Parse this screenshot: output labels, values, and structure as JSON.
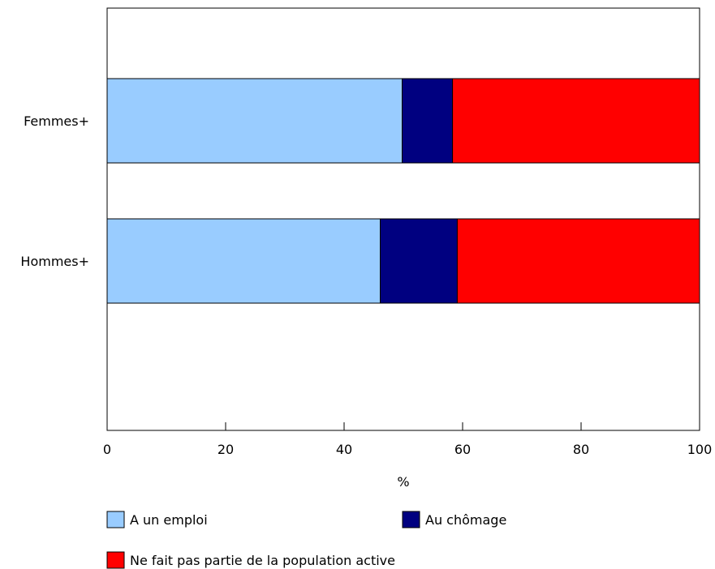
{
  "chart_data": {
    "type": "bar",
    "orientation": "horizontal",
    "stacked": true,
    "categories": [
      "Femmes+",
      "Hommes+"
    ],
    "series": [
      {
        "name": "A un emploi",
        "color": "#99ccff",
        "values": [
          49.8,
          46.1
        ]
      },
      {
        "name": "Au chômage",
        "color": "#000080",
        "values": [
          8.5,
          13.0
        ]
      },
      {
        "name": "Ne fait pas partie de la population active",
        "color": "#ff0000",
        "values": [
          41.7,
          40.9
        ]
      }
    ],
    "xlabel": "%",
    "ylabel": "",
    "xlim": [
      0,
      100
    ],
    "xticks": [
      "0",
      "20",
      "40",
      "60",
      "80",
      "100"
    ],
    "grid": false,
    "legend_position": "bottom"
  }
}
